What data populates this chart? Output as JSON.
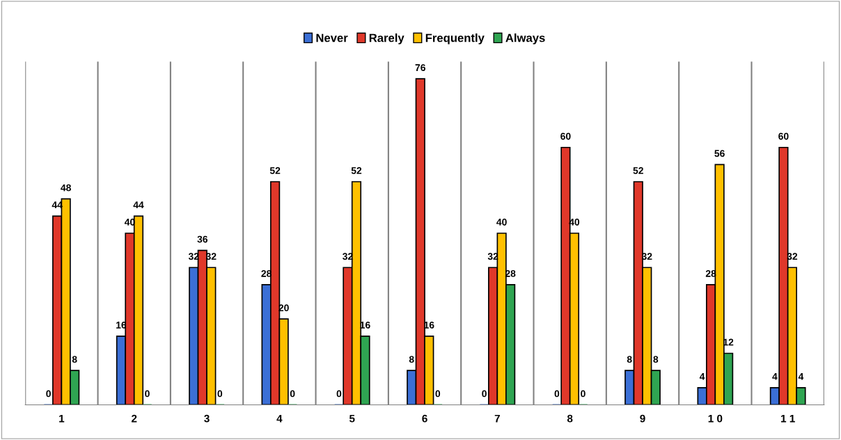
{
  "chart_data": {
    "type": "bar",
    "categories": [
      "1",
      "2",
      "3",
      "4",
      "5",
      "6",
      "7",
      "8",
      "9",
      "1 0",
      "1 1"
    ],
    "series": [
      {
        "name": "Never",
        "color": "#3b6fd6",
        "values": [
          0,
          16,
          32,
          28,
          0,
          8,
          0,
          0,
          8,
          4,
          4
        ]
      },
      {
        "name": "Rarely",
        "color": "#e0382a",
        "values": [
          44,
          40,
          36,
          52,
          32,
          76,
          32,
          60,
          52,
          28,
          60
        ]
      },
      {
        "name": "Frequently",
        "color": "#ffc000",
        "values": [
          48,
          44,
          32,
          20,
          52,
          16,
          40,
          40,
          32,
          56,
          32
        ]
      },
      {
        "name": "Always",
        "color": "#2fa552",
        "values": [
          8,
          0,
          0,
          0,
          16,
          0,
          28,
          0,
          8,
          12,
          4
        ]
      }
    ],
    "ylim": [
      0,
      80
    ],
    "data_labels": true,
    "grid": "x",
    "legend": "top",
    "tick_labels": "x"
  }
}
